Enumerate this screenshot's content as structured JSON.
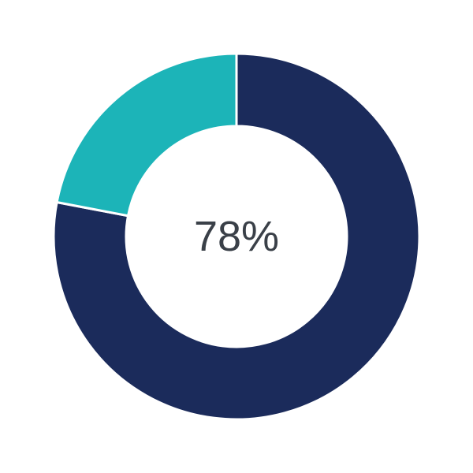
{
  "chart_data": {
    "type": "pie",
    "variant": "donut",
    "center_label": "78%",
    "start": "top",
    "direction": "clockwise",
    "slices": [
      {
        "value": 78,
        "color": "#1b2b5b"
      },
      {
        "value": 22,
        "color": "#1cb4b8"
      }
    ],
    "separator_color": "#ffffff"
  }
}
